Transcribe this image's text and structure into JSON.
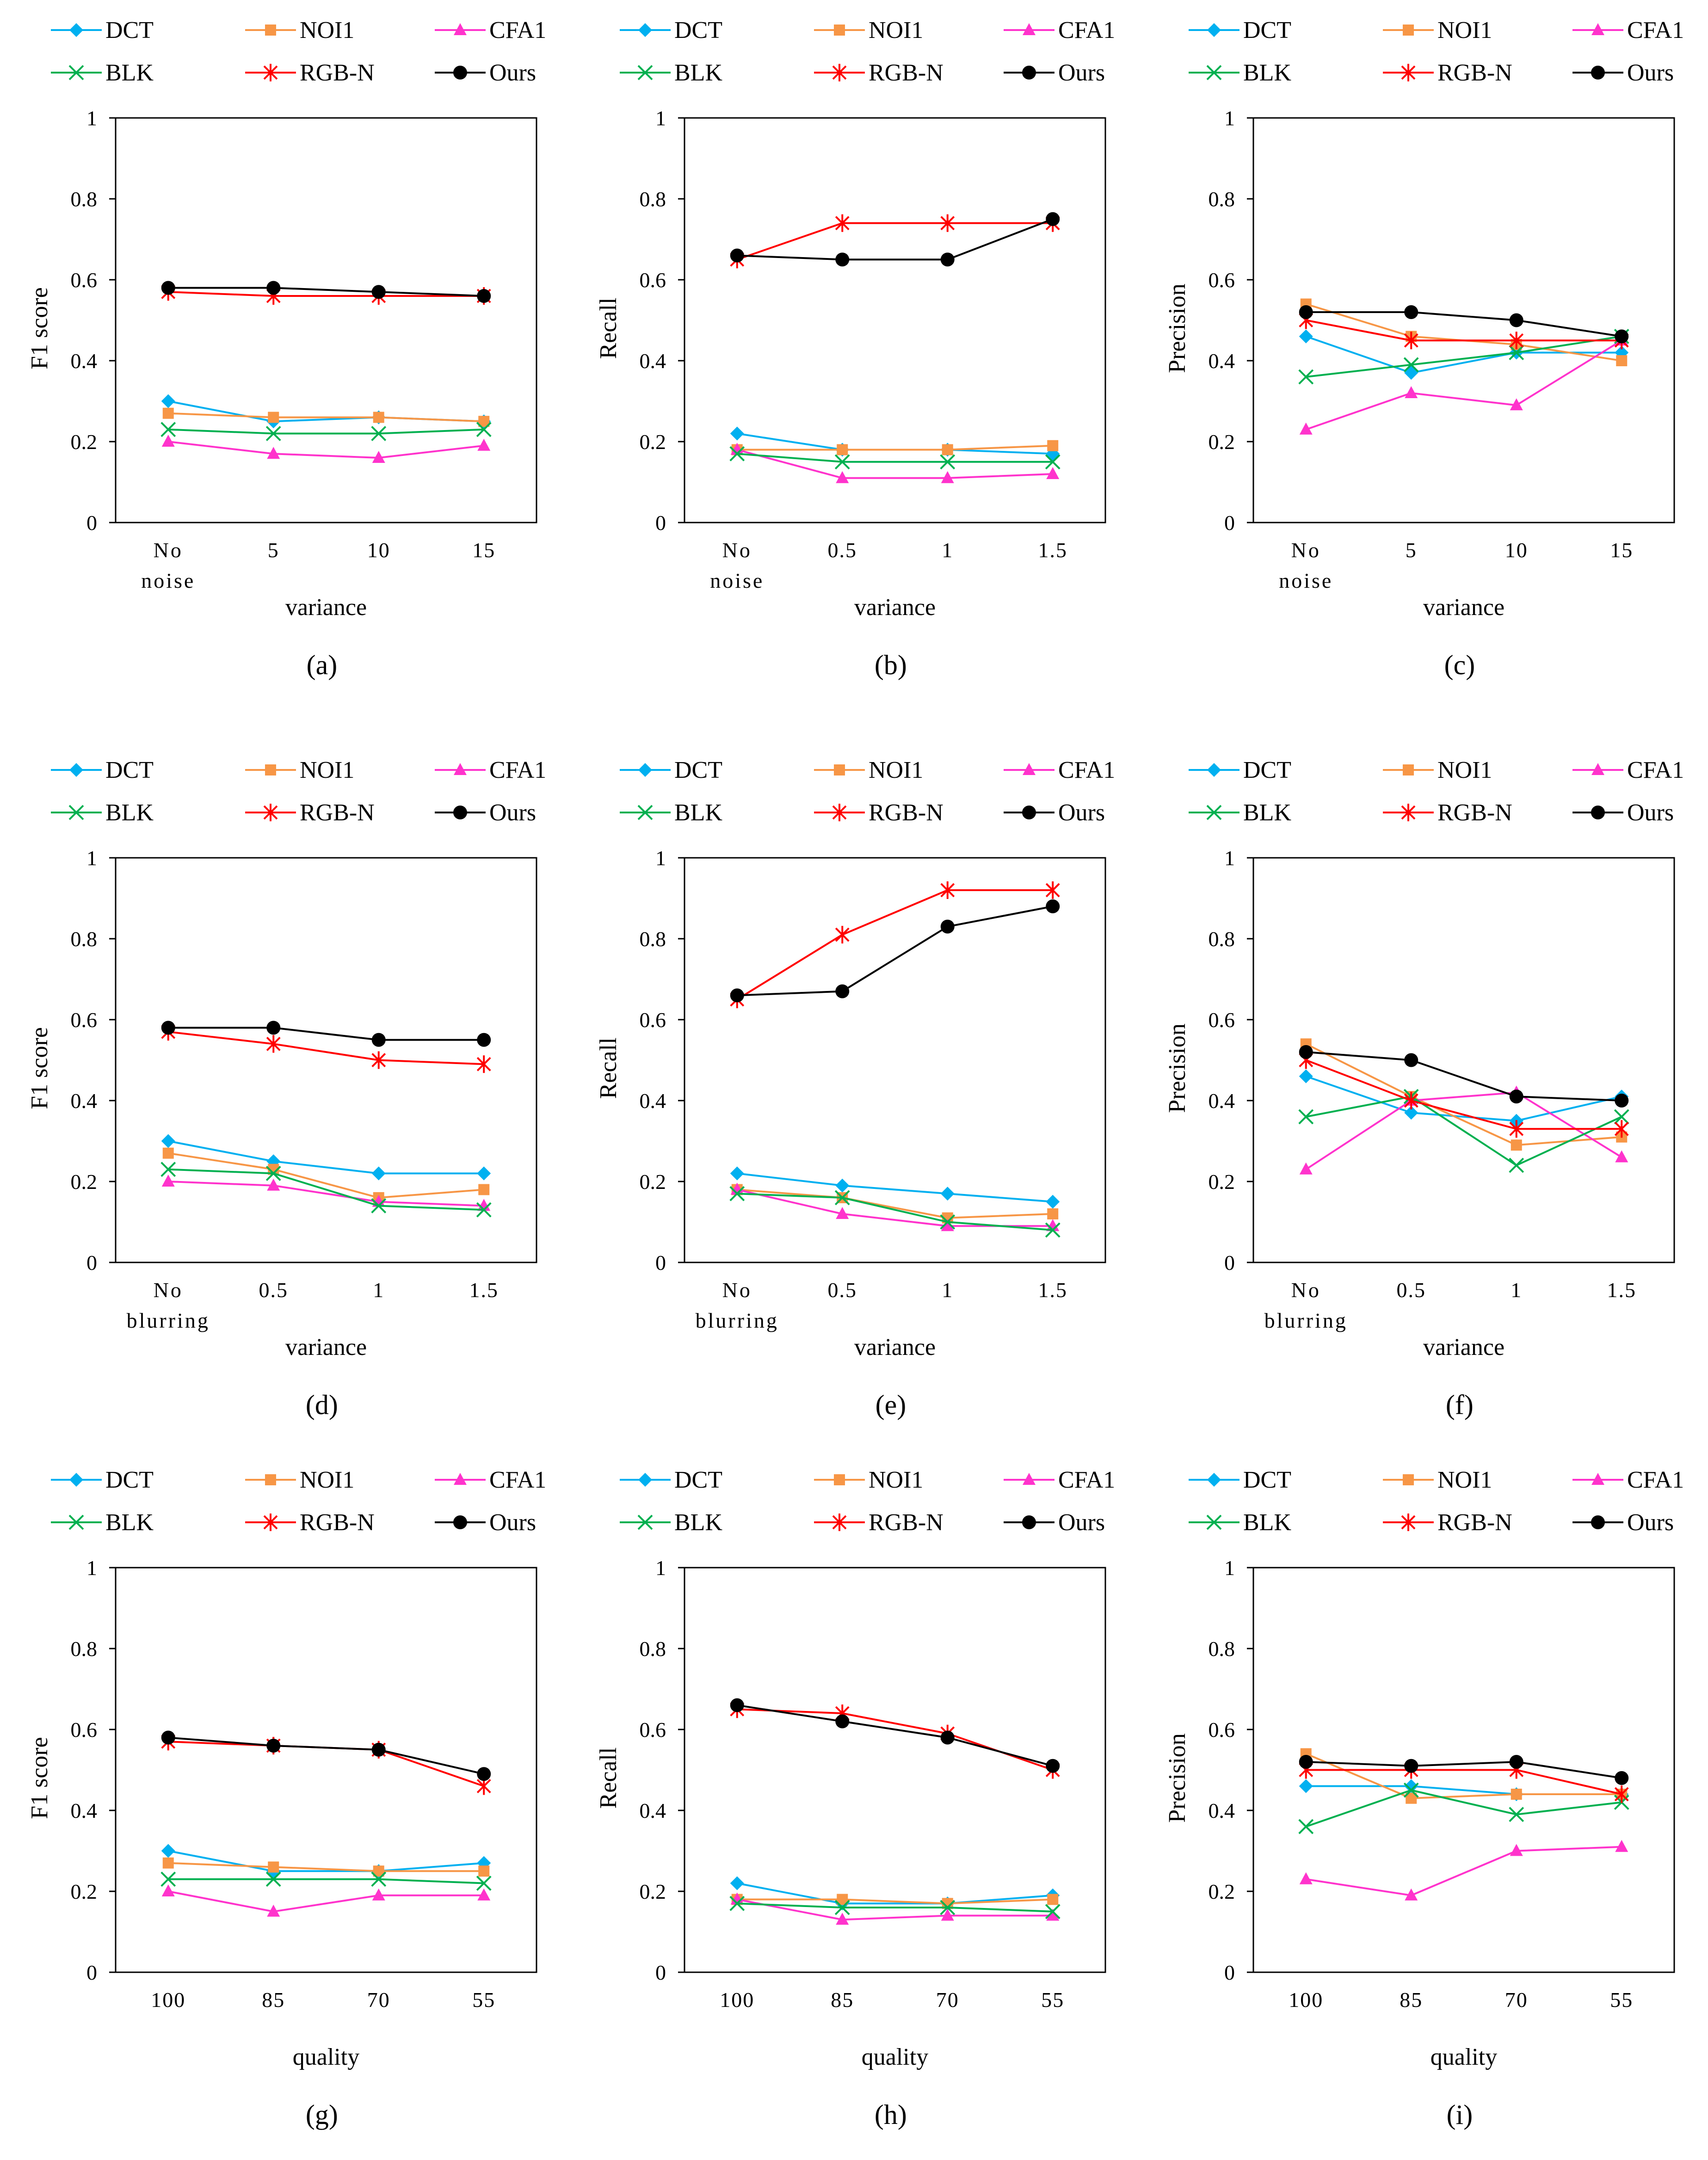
{
  "figure": {
    "series_styles": [
      {
        "name": "DCT",
        "color": "#00B0F0",
        "marker": "diamond"
      },
      {
        "name": "NOI1",
        "color": "#F79646",
        "marker": "square"
      },
      {
        "name": "CFA1",
        "color": "#FF33CC",
        "marker": "triangle"
      },
      {
        "name": "BLK",
        "color": "#00B050",
        "marker": "x-cross"
      },
      {
        "name": "RGB-N",
        "color": "#FF0000",
        "marker": "star"
      },
      {
        "name": "Ours",
        "color": "#000000",
        "marker": "circle"
      }
    ]
  },
  "chart_data": [
    {
      "type": "line",
      "panel_label": "(a)",
      "ylabel": "F1 score",
      "xlabel": "variance",
      "categories": [
        "No noise",
        "5",
        "10",
        "15"
      ],
      "ylim": [
        0,
        1
      ],
      "yticks": [
        "0",
        "0.2",
        "0.4",
        "0.6",
        "0.8",
        "1"
      ],
      "series": [
        {
          "name": "DCT",
          "values": [
            0.3,
            0.25,
            0.26,
            0.25
          ]
        },
        {
          "name": "NOI1",
          "values": [
            0.27,
            0.26,
            0.26,
            0.25
          ]
        },
        {
          "name": "CFA1",
          "values": [
            0.2,
            0.17,
            0.16,
            0.19
          ]
        },
        {
          "name": "BLK",
          "values": [
            0.23,
            0.22,
            0.22,
            0.23
          ]
        },
        {
          "name": "RGB-N",
          "values": [
            0.57,
            0.56,
            0.56,
            0.56
          ]
        },
        {
          "name": "Ours",
          "values": [
            0.58,
            0.58,
            0.57,
            0.56
          ]
        }
      ]
    },
    {
      "type": "line",
      "panel_label": "(b)",
      "ylabel": "Recall",
      "xlabel": "variance",
      "categories": [
        "No noise",
        "0.5",
        "1",
        "1.5"
      ],
      "ylim": [
        0,
        1
      ],
      "yticks": [
        "0",
        "0.2",
        "0.4",
        "0.6",
        "0.8",
        "1"
      ],
      "series": [
        {
          "name": "DCT",
          "values": [
            0.22,
            0.18,
            0.18,
            0.17
          ]
        },
        {
          "name": "NOI1",
          "values": [
            0.18,
            0.18,
            0.18,
            0.19
          ]
        },
        {
          "name": "CFA1",
          "values": [
            0.18,
            0.11,
            0.11,
            0.12
          ]
        },
        {
          "name": "BLK",
          "values": [
            0.17,
            0.15,
            0.15,
            0.15
          ]
        },
        {
          "name": "RGB-N",
          "values": [
            0.65,
            0.74,
            0.74,
            0.74
          ]
        },
        {
          "name": "Ours",
          "values": [
            0.66,
            0.65,
            0.65,
            0.75
          ]
        }
      ]
    },
    {
      "type": "line",
      "panel_label": "(c)",
      "ylabel": "Precision",
      "xlabel": "variance",
      "categories": [
        "No noise",
        "5",
        "10",
        "15"
      ],
      "ylim": [
        0,
        1
      ],
      "yticks": [
        "0",
        "0.2",
        "0.4",
        "0.6",
        "0.8",
        "1"
      ],
      "series": [
        {
          "name": "DCT",
          "values": [
            0.46,
            0.37,
            0.42,
            0.42
          ]
        },
        {
          "name": "NOI1",
          "values": [
            0.54,
            0.46,
            0.44,
            0.4
          ]
        },
        {
          "name": "CFA1",
          "values": [
            0.23,
            0.32,
            0.29,
            0.45
          ]
        },
        {
          "name": "BLK",
          "values": [
            0.36,
            0.39,
            0.42,
            0.46
          ]
        },
        {
          "name": "RGB-N",
          "values": [
            0.5,
            0.45,
            0.45,
            0.45
          ]
        },
        {
          "name": "Ours",
          "values": [
            0.52,
            0.52,
            0.5,
            0.46
          ]
        }
      ]
    },
    {
      "type": "line",
      "panel_label": "(d)",
      "ylabel": "F1 score",
      "xlabel": "variance",
      "categories": [
        "No blurring",
        "0.5",
        "1",
        "1.5"
      ],
      "ylim": [
        0,
        1
      ],
      "yticks": [
        "0",
        "0.2",
        "0.4",
        "0.6",
        "0.8",
        "1"
      ],
      "series": [
        {
          "name": "DCT",
          "values": [
            0.3,
            0.25,
            0.22,
            0.22
          ]
        },
        {
          "name": "NOI1",
          "values": [
            0.27,
            0.23,
            0.16,
            0.18
          ]
        },
        {
          "name": "CFA1",
          "values": [
            0.2,
            0.19,
            0.15,
            0.14
          ]
        },
        {
          "name": "BLK",
          "values": [
            0.23,
            0.22,
            0.14,
            0.13
          ]
        },
        {
          "name": "RGB-N",
          "values": [
            0.57,
            0.54,
            0.5,
            0.49
          ]
        },
        {
          "name": "Ours",
          "values": [
            0.58,
            0.58,
            0.55,
            0.55
          ]
        }
      ]
    },
    {
      "type": "line",
      "panel_label": "(e)",
      "ylabel": "Recall",
      "xlabel": "variance",
      "categories": [
        "No blurring",
        "0.5",
        "1",
        "1.5"
      ],
      "ylim": [
        0,
        1
      ],
      "yticks": [
        "0",
        "0.2",
        "0.4",
        "0.6",
        "0.8",
        "1"
      ],
      "series": [
        {
          "name": "DCT",
          "values": [
            0.22,
            0.19,
            0.17,
            0.15
          ]
        },
        {
          "name": "NOI1",
          "values": [
            0.18,
            0.16,
            0.11,
            0.12
          ]
        },
        {
          "name": "CFA1",
          "values": [
            0.18,
            0.12,
            0.09,
            0.09
          ]
        },
        {
          "name": "BLK",
          "values": [
            0.17,
            0.16,
            0.1,
            0.08
          ]
        },
        {
          "name": "RGB-N",
          "values": [
            0.65,
            0.81,
            0.92,
            0.92
          ]
        },
        {
          "name": "Ours",
          "values": [
            0.66,
            0.67,
            0.83,
            0.88
          ]
        }
      ]
    },
    {
      "type": "line",
      "panel_label": "(f)",
      "ylabel": "Precision",
      "xlabel": "variance",
      "categories": [
        "No blurring",
        "0.5",
        "1",
        "1.5"
      ],
      "ylim": [
        0,
        1
      ],
      "yticks": [
        "0",
        "0.2",
        "0.4",
        "0.6",
        "0.8",
        "1"
      ],
      "series": [
        {
          "name": "DCT",
          "values": [
            0.46,
            0.37,
            0.35,
            0.41
          ]
        },
        {
          "name": "NOI1",
          "values": [
            0.54,
            0.41,
            0.29,
            0.31
          ]
        },
        {
          "name": "CFA1",
          "values": [
            0.23,
            0.4,
            0.42,
            0.26
          ]
        },
        {
          "name": "BLK",
          "values": [
            0.36,
            0.41,
            0.24,
            0.36
          ]
        },
        {
          "name": "RGB-N",
          "values": [
            0.5,
            0.4,
            0.33,
            0.33
          ]
        },
        {
          "name": "Ours",
          "values": [
            0.52,
            0.5,
            0.41,
            0.4
          ]
        }
      ]
    },
    {
      "type": "line",
      "panel_label": "(g)",
      "ylabel": "F1 score",
      "xlabel": "quality",
      "categories": [
        "100",
        "85",
        "70",
        "55"
      ],
      "ylim": [
        0,
        1
      ],
      "yticks": [
        "0",
        "0.2",
        "0.4",
        "0.6",
        "0.8",
        "1"
      ],
      "series": [
        {
          "name": "DCT",
          "values": [
            0.3,
            0.25,
            0.25,
            0.27
          ]
        },
        {
          "name": "NOI1",
          "values": [
            0.27,
            0.26,
            0.25,
            0.25
          ]
        },
        {
          "name": "CFA1",
          "values": [
            0.2,
            0.15,
            0.19,
            0.19
          ]
        },
        {
          "name": "BLK",
          "values": [
            0.23,
            0.23,
            0.23,
            0.22
          ]
        },
        {
          "name": "RGB-N",
          "values": [
            0.57,
            0.56,
            0.55,
            0.46
          ]
        },
        {
          "name": "Ours",
          "values": [
            0.58,
            0.56,
            0.55,
            0.49
          ]
        }
      ]
    },
    {
      "type": "line",
      "panel_label": "(h)",
      "ylabel": "Recall",
      "xlabel": "quality",
      "categories": [
        "100",
        "85",
        "70",
        "55"
      ],
      "ylim": [
        0,
        1
      ],
      "yticks": [
        "0",
        "0.2",
        "0.4",
        "0.6",
        "0.8",
        "1"
      ],
      "series": [
        {
          "name": "DCT",
          "values": [
            0.22,
            0.17,
            0.17,
            0.19
          ]
        },
        {
          "name": "NOI1",
          "values": [
            0.18,
            0.18,
            0.17,
            0.18
          ]
        },
        {
          "name": "CFA1",
          "values": [
            0.18,
            0.13,
            0.14,
            0.14
          ]
        },
        {
          "name": "BLK",
          "values": [
            0.17,
            0.16,
            0.16,
            0.15
          ]
        },
        {
          "name": "RGB-N",
          "values": [
            0.65,
            0.64,
            0.59,
            0.5
          ]
        },
        {
          "name": "Ours",
          "values": [
            0.66,
            0.62,
            0.58,
            0.51
          ]
        }
      ]
    },
    {
      "type": "line",
      "panel_label": "(i)",
      "ylabel": "Precision",
      "xlabel": "quality",
      "categories": [
        "100",
        "85",
        "70",
        "55"
      ],
      "ylim": [
        0,
        1
      ],
      "yticks": [
        "0",
        "0.2",
        "0.4",
        "0.6",
        "0.8",
        "1"
      ],
      "series": [
        {
          "name": "DCT",
          "values": [
            0.46,
            0.46,
            0.44,
            0.44
          ]
        },
        {
          "name": "NOI1",
          "values": [
            0.54,
            0.43,
            0.44,
            0.44
          ]
        },
        {
          "name": "CFA1",
          "values": [
            0.23,
            0.19,
            0.3,
            0.31
          ]
        },
        {
          "name": "BLK",
          "values": [
            0.36,
            0.45,
            0.39,
            0.42
          ]
        },
        {
          "name": "RGB-N",
          "values": [
            0.5,
            0.5,
            0.5,
            0.44
          ]
        },
        {
          "name": "Ours",
          "values": [
            0.52,
            0.51,
            0.52,
            0.48
          ]
        }
      ]
    }
  ]
}
